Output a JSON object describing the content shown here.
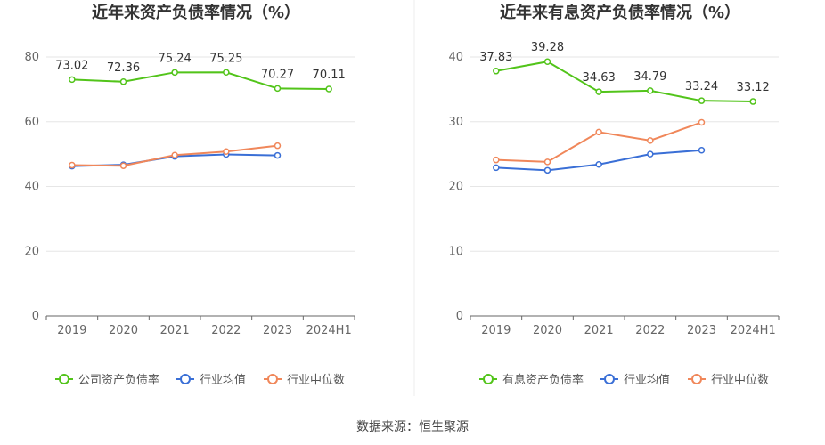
{
  "source_label": "数据来源：恒生聚源",
  "chart_data": [
    {
      "type": "line",
      "title": "近年来资产负债率情况（%）",
      "categories": [
        "2019",
        "2020",
        "2021",
        "2022",
        "2023",
        "2024H1"
      ],
      "ylim": [
        0,
        80
      ],
      "yticks": [
        0,
        20,
        40,
        60,
        80
      ],
      "grid": true,
      "legend_position": "bottom",
      "series": [
        {
          "name": "公司资产负债率",
          "color": "#52c41a",
          "values": [
            73.02,
            72.36,
            75.24,
            75.25,
            70.27,
            70.11
          ],
          "labels": [
            "73.02",
            "72.36",
            "75.24",
            "75.25",
            "70.27",
            "70.11"
          ]
        },
        {
          "name": "行业均值",
          "color": "#3a6fd6",
          "values": [
            46.3,
            46.7,
            49.3,
            49.9,
            49.6,
            null
          ]
        },
        {
          "name": "行业中位数",
          "color": "#f0875a",
          "values": [
            46.6,
            46.4,
            49.7,
            50.8,
            52.6,
            null
          ]
        }
      ]
    },
    {
      "type": "line",
      "title": "近年来有息资产负债率情况（%）",
      "categories": [
        "2019",
        "2020",
        "2021",
        "2022",
        "2023",
        "2024H1"
      ],
      "ylim": [
        0,
        40
      ],
      "yticks": [
        0,
        10,
        20,
        30,
        40
      ],
      "grid": true,
      "legend_position": "bottom",
      "series": [
        {
          "name": "有息资产负债率",
          "color": "#52c41a",
          "values": [
            37.83,
            39.28,
            34.63,
            34.79,
            33.24,
            33.12
          ],
          "labels": [
            "37.83",
            "39.28",
            "34.63",
            "34.79",
            "33.24",
            "33.12"
          ]
        },
        {
          "name": "行业均值",
          "color": "#3a6fd6",
          "values": [
            22.9,
            22.5,
            23.4,
            25.0,
            25.6,
            null
          ]
        },
        {
          "name": "行业中位数",
          "color": "#f0875a",
          "values": [
            24.1,
            23.8,
            28.4,
            27.1,
            29.9,
            null
          ]
        }
      ]
    }
  ]
}
